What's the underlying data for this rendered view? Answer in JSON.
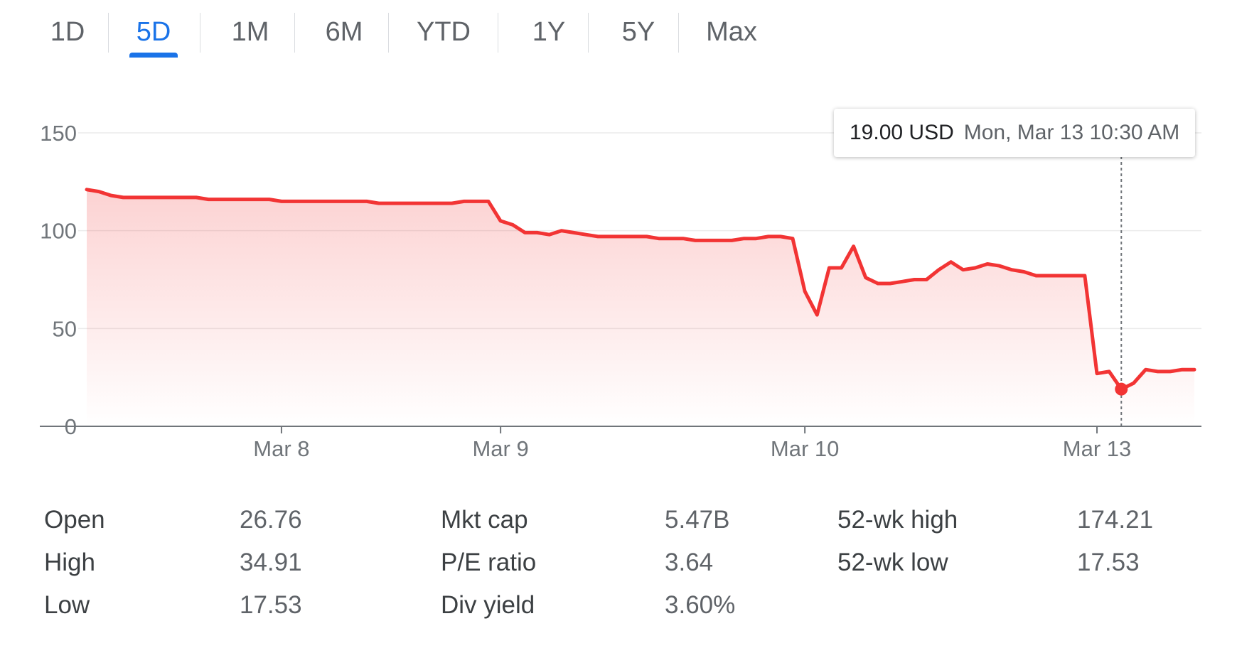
{
  "tabs": [
    {
      "label": "1D",
      "active": false
    },
    {
      "label": "5D",
      "active": true
    },
    {
      "label": "1M",
      "active": false
    },
    {
      "label": "6M",
      "active": false
    },
    {
      "label": "YTD",
      "active": false
    },
    {
      "label": "1Y",
      "active": false
    },
    {
      "label": "5Y",
      "active": false
    },
    {
      "label": "Max",
      "active": false
    }
  ],
  "tooltip": {
    "price": "19.00 USD",
    "time": "Mon, Mar 13 10:30 AM"
  },
  "colors": {
    "line": "#f23434",
    "accent": "#1a73e8"
  },
  "chart_data": {
    "type": "line",
    "title": "",
    "xlabel": "",
    "ylabel": "",
    "ylim": [
      0,
      150
    ],
    "y_ticks": [
      0,
      50,
      100,
      150
    ],
    "x_ticks": [
      "Mar 8",
      "Mar 9",
      "Mar 10",
      "Mar 13"
    ],
    "grid": true,
    "highlight": {
      "x": "Mar 13 10:30 AM",
      "y": 19.0
    },
    "series": [
      {
        "values": [
          121,
          120,
          118,
          117,
          117,
          117,
          117,
          117,
          117,
          117,
          116,
          116,
          116,
          116,
          116,
          116,
          115,
          115,
          115,
          115,
          115,
          115,
          115,
          115,
          114,
          114,
          114,
          114,
          114,
          114,
          114,
          115,
          115,
          115,
          105,
          103,
          99,
          99,
          98,
          100,
          99,
          98,
          97,
          97,
          97,
          97,
          97,
          96,
          96,
          96,
          95,
          95,
          95,
          95,
          96,
          96,
          97,
          97,
          96,
          69,
          57,
          81,
          81,
          92,
          76,
          73,
          73,
          74,
          75,
          75,
          80,
          84,
          80,
          81,
          83,
          82,
          80,
          79,
          77,
          77,
          77,
          77,
          77,
          27,
          28,
          19,
          22,
          29,
          28,
          28,
          29,
          29
        ]
      }
    ]
  },
  "stats": {
    "col1": [
      {
        "label": "Open",
        "value": "26.76"
      },
      {
        "label": "High",
        "value": "34.91"
      },
      {
        "label": "Low",
        "value": "17.53"
      }
    ],
    "col2": [
      {
        "label": "Mkt cap",
        "value": "5.47B"
      },
      {
        "label": "P/E ratio",
        "value": "3.64"
      },
      {
        "label": "Div yield",
        "value": "3.60%"
      }
    ],
    "col3": [
      {
        "label": "52-wk high",
        "value": "174.21"
      },
      {
        "label": "52-wk low",
        "value": "17.53"
      }
    ]
  }
}
